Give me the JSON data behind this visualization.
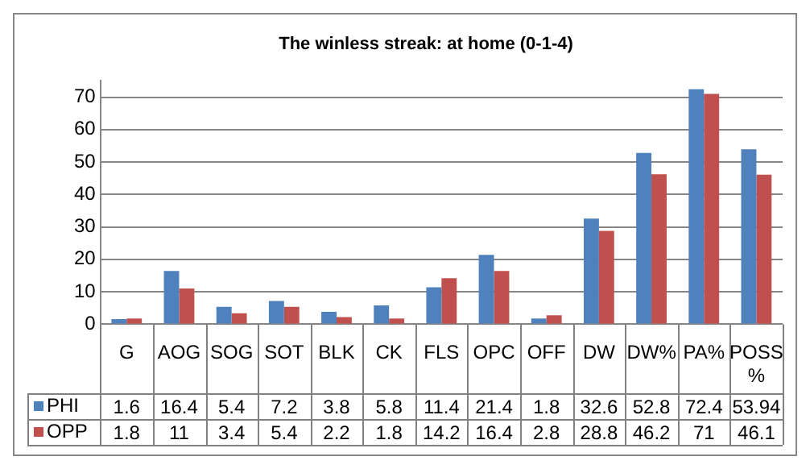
{
  "chart_data": {
    "type": "bar",
    "title": "The winless streak: at home (0-1-4)",
    "categories": [
      "G",
      "AOG",
      "SOG",
      "SOT",
      "BLK",
      "CK",
      "FLS",
      "OPC",
      "OFF",
      "DW",
      "DW%",
      "PA%",
      "POSS %"
    ],
    "series": [
      {
        "name": "PHI",
        "color": "#4f81bd",
        "values": [
          1.6,
          16.4,
          5.4,
          7.2,
          3.8,
          5.8,
          11.4,
          21.4,
          1.8,
          32.6,
          52.8,
          72.4,
          53.94
        ]
      },
      {
        "name": "OPP",
        "color": "#c0504d",
        "values": [
          1.8,
          11,
          3.4,
          5.4,
          2.2,
          1.8,
          14.2,
          16.4,
          2.8,
          28.8,
          46.2,
          71,
          46.1
        ]
      }
    ],
    "ylim": [
      0,
      75
    ],
    "yticks": [
      0,
      10,
      20,
      30,
      40,
      50,
      60,
      70
    ],
    "grid": "y",
    "legend": "bottom",
    "data_labels": true
  }
}
